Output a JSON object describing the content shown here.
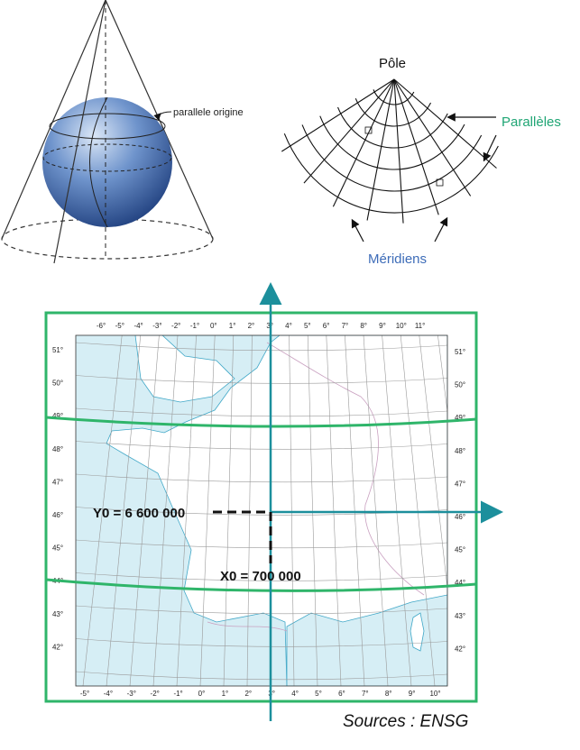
{
  "cone": {
    "label_parallel": "parallele origine"
  },
  "fan": {
    "title": "Pôle",
    "parallels": "Parallèles",
    "meridians": "Méridiens"
  },
  "map": {
    "top_ticks": [
      "-6°",
      "-5°",
      "-4°",
      "-3°",
      "-2°",
      "-1°",
      "0°",
      "1°",
      "2°",
      "3°",
      "4°",
      "5°",
      "6°",
      "7°",
      "8°",
      "9°",
      "10°",
      "11°"
    ],
    "bottom_ticks": [
      "-5°",
      "-4°",
      "-3°",
      "-2°",
      "-1°",
      "0°",
      "1°",
      "2°",
      "3°",
      "4°",
      "5°",
      "6°",
      "7°",
      "8°",
      "9°",
      "10°"
    ],
    "left_ticks": [
      "51°",
      "50°",
      "49°",
      "48°",
      "47°",
      "46°",
      "45°",
      "44°",
      "43°",
      "42°"
    ],
    "right_ticks": [
      "51°",
      "50°",
      "49°",
      "48°",
      "47°",
      "46°",
      "45°",
      "44°",
      "43°",
      "42°"
    ],
    "y0_label": "Y0 = 6 600 000",
    "x0_label": "X0 = 700 000"
  },
  "source": "Sources : ENSG",
  "colors": {
    "frame": "#2fb56a",
    "axis": "#1c8f9c",
    "sea": "#d6eef5",
    "blue_label": "#3d6cb8",
    "green_label": "#1fa574"
  }
}
